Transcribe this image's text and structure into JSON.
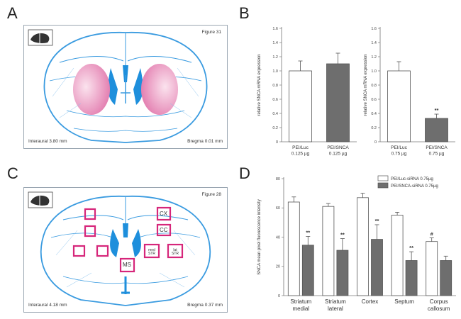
{
  "panels": {
    "a": "A",
    "b": "B",
    "c": "C",
    "d": "D"
  },
  "atlas_a": {
    "figure": "Figure 31",
    "interaural": "Interaural 3.80 mm",
    "bregma": "Bregma 0.01 mm"
  },
  "atlas_c": {
    "figure": "Figure 28",
    "interaural": "Interaural 4.18 mm",
    "bregma": "Bregma 0.37 mm",
    "regions": [
      "CX",
      "CC",
      "med STR",
      "lat STR",
      "MS"
    ]
  },
  "chart_data": [
    {
      "type": "bar",
      "ylabel": "relative SNCA mRNA expression",
      "ylim": [
        0,
        1.6
      ],
      "yticks": [
        "0",
        "0.2",
        "0.4",
        "0.6",
        "0.8",
        "1.0",
        "1.2",
        "1.4",
        "1.6"
      ],
      "categories": [
        [
          "PEI/Luc",
          "0.125 µg"
        ],
        [
          "PEI/SNCA",
          "0.125 µg"
        ]
      ],
      "values": [
        1.0,
        1.1
      ],
      "errors": [
        0.14,
        0.15
      ],
      "colors": [
        "#ffffff",
        "#6e6e6e"
      ],
      "annotations": [
        "",
        ""
      ]
    },
    {
      "type": "bar",
      "ylabel": "relative SNCA mRNA expression",
      "ylim": [
        0,
        1.6
      ],
      "yticks": [
        "0",
        "0.2",
        "0.4",
        "0.6",
        "0.8",
        "1.0",
        "1.2",
        "1.4",
        "1.6"
      ],
      "categories": [
        [
          "PEI/Luc",
          "0.75 µg"
        ],
        [
          "PEI/SNCA",
          "0.75 µg"
        ]
      ],
      "values": [
        1.0,
        0.33
      ],
      "errors": [
        0.13,
        0.06
      ],
      "colors": [
        "#ffffff",
        "#6e6e6e"
      ],
      "annotations": [
        "",
        "**"
      ]
    },
    {
      "type": "bar",
      "ylabel": "SNCA mean pixel fluorescence intensity",
      "ylim": [
        0,
        80
      ],
      "yticks": [
        "0",
        "20",
        "40",
        "60",
        "80"
      ],
      "categories": [
        [
          "Striatum",
          "medial"
        ],
        [
          "Striatum",
          "lateral"
        ],
        [
          "Cortex"
        ],
        [
          "Septum"
        ],
        [
          "Corpus",
          "callosum"
        ]
      ],
      "legend_position": "top-right",
      "series": [
        {
          "name": "PEI/Luc-siRNA 0.75µg",
          "color": "#ffffff",
          "values": [
            64,
            61,
            67,
            55,
            37
          ],
          "errors": [
            3.5,
            2,
            3,
            2,
            2.5
          ],
          "annotations": [
            "",
            "",
            "",
            "",
            "#"
          ]
        },
        {
          "name": "PEI/SNCA-siRNA 0.75µg",
          "color": "#6e6e6e",
          "values": [
            34.5,
            31,
            38.5,
            24,
            24
          ],
          "errors": [
            6,
            8,
            10,
            6,
            3
          ],
          "annotations": [
            "**",
            "**",
            "**",
            "**",
            ""
          ]
        }
      ]
    }
  ]
}
